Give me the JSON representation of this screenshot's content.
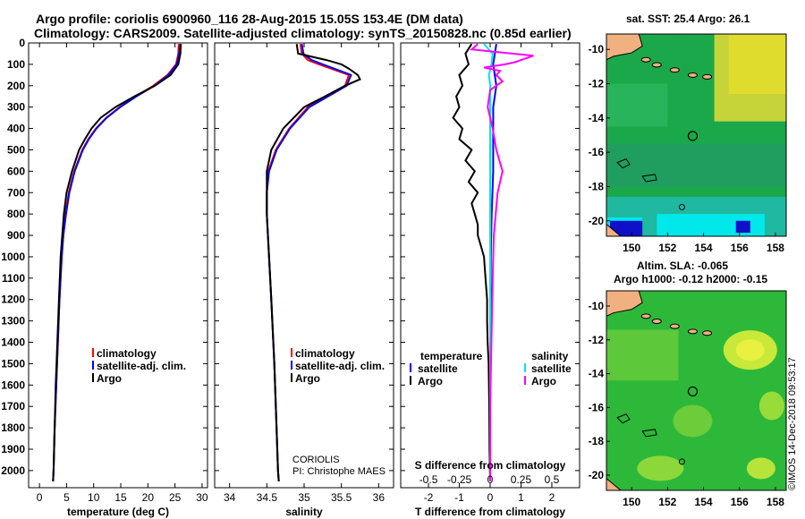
{
  "header": {
    "line1": "Argo profile: coriolis 6900960_116 28-Aug-2015 15.05S 153.4E (DM data)",
    "line2": "Climatology: CARS2009. Satellite-adjusted climatology: synTS_20150828.nc (0.85d earlier)"
  },
  "maps": {
    "sst_title": "sat. SST: 25.4 Argo: 26.1",
    "sla_title1": "Altim. SLA: -0.065",
    "sla_title2": "Argo h1000: -0.12 h2000: -0.15",
    "lat_ticks": [
      -10,
      -12,
      -14,
      -16,
      -18,
      -20
    ],
    "lon_ticks": [
      150,
      152,
      154,
      156,
      158
    ],
    "argo_position": {
      "lon": 153.4,
      "lat": -15.05
    }
  },
  "stamp": "©IMOS 14-Dec-2018 09:53:17",
  "credit": {
    "line1": "CORIOLIS",
    "line2": "PI: Christophe MAES"
  },
  "colors": {
    "climatology": "#ff0000",
    "satellite": "#0000ff",
    "argo": "#000000",
    "sat_salinity": "#00e5e5",
    "argo_salinity": "#ff00ff"
  },
  "chart_data": [
    {
      "type": "line",
      "title": "",
      "xlabel": "temperature (deg C)",
      "ylabel": "",
      "xlim": [
        -2,
        31
      ],
      "ylim": [
        2080,
        0
      ],
      "xticks": [
        0,
        5,
        10,
        15,
        20,
        25,
        30
      ],
      "yticks": [
        0,
        100,
        200,
        300,
        400,
        500,
        600,
        700,
        800,
        900,
        1000,
        1100,
        1200,
        1300,
        1400,
        1500,
        1600,
        1700,
        1800,
        1900,
        2000
      ],
      "legend": [
        "climatology",
        "satellite-adj. clim.",
        "Argo"
      ],
      "series": [
        {
          "name": "climatology",
          "depth": [
            5,
            50,
            100,
            150,
            200,
            250,
            300,
            350,
            400,
            450,
            500,
            600,
            700,
            800,
            900,
            1000,
            1200,
            1400,
            1600,
            1800,
            2000,
            2050
          ],
          "values": [
            25.7,
            25.6,
            25.2,
            23.6,
            21.0,
            17.8,
            14.8,
            12.3,
            10.4,
            9.0,
            7.9,
            6.4,
            5.4,
            4.8,
            4.4,
            4.1,
            3.7,
            3.4,
            3.1,
            2.8,
            2.6,
            2.5
          ]
        },
        {
          "name": "satellite-adj. clim.",
          "depth": [
            5,
            50,
            100,
            150,
            200,
            250,
            300,
            350,
            400,
            450,
            500,
            600,
            700,
            800,
            900,
            1000,
            1200,
            1400,
            1600,
            1800,
            2000,
            2050
          ],
          "values": [
            25.9,
            25.8,
            25.3,
            23.8,
            21.2,
            17.9,
            14.9,
            12.4,
            10.5,
            9.1,
            8.0,
            6.5,
            5.5,
            4.9,
            4.4,
            4.1,
            3.7,
            3.4,
            3.1,
            2.8,
            2.6,
            2.5
          ]
        },
        {
          "name": "Argo",
          "depth": [
            5,
            50,
            100,
            150,
            200,
            250,
            300,
            350,
            400,
            450,
            500,
            600,
            700,
            800,
            900,
            1000,
            1200,
            1400,
            1600,
            1800,
            2000,
            2050
          ],
          "values": [
            26.1,
            26.0,
            25.6,
            24.2,
            21.3,
            17.5,
            14.0,
            11.3,
            9.6,
            8.4,
            7.3,
            6.0,
            5.0,
            4.5,
            4.2,
            3.9,
            3.6,
            3.3,
            3.0,
            2.8,
            2.6,
            2.5
          ]
        }
      ]
    },
    {
      "type": "line",
      "xlabel": "salinity",
      "xlim": [
        33.8,
        36.2
      ],
      "ylim": [
        2080,
        0
      ],
      "xticks": [
        34,
        34.5,
        35,
        35.5,
        36
      ],
      "legend": [
        "climatology",
        "satellite-adj. clim.",
        "Argo"
      ],
      "series": [
        {
          "name": "climatology",
          "depth": [
            5,
            50,
            80,
            100,
            150,
            200,
            250,
            300,
            400,
            500,
            600,
            700,
            800,
            1000,
            1200,
            1500,
            1800,
            2000,
            2050
          ],
          "values": [
            34.95,
            34.97,
            35.05,
            35.2,
            35.6,
            35.55,
            35.3,
            35.05,
            34.8,
            34.62,
            34.52,
            34.5,
            34.5,
            34.53,
            34.56,
            34.6,
            34.63,
            34.65,
            34.66
          ]
        },
        {
          "name": "satellite-adj. clim.",
          "depth": [
            5,
            50,
            80,
            100,
            150,
            200,
            250,
            300,
            400,
            500,
            600,
            700,
            800,
            1000,
            1200,
            1500,
            1800,
            2000,
            2050
          ],
          "values": [
            34.97,
            34.99,
            35.1,
            35.25,
            35.63,
            35.57,
            35.32,
            35.07,
            34.81,
            34.63,
            34.53,
            34.5,
            34.5,
            34.53,
            34.56,
            34.6,
            34.63,
            34.65,
            34.66
          ]
        },
        {
          "name": "Argo",
          "depth": [
            5,
            50,
            80,
            100,
            120,
            150,
            170,
            200,
            250,
            300,
            400,
            500,
            600,
            700,
            800,
            1000,
            1200,
            1500,
            1800,
            2000,
            2050
          ],
          "values": [
            34.9,
            34.92,
            35.3,
            35.5,
            35.6,
            35.72,
            35.75,
            35.55,
            35.28,
            35.0,
            34.72,
            34.56,
            34.5,
            34.5,
            34.5,
            34.53,
            34.56,
            34.6,
            34.63,
            34.65,
            34.66
          ]
        }
      ]
    },
    {
      "type": "line",
      "xlabel": "T difference from climatology",
      "top_xlabel": "S difference from climatology",
      "xlim": [
        -2.9,
        2.9
      ],
      "ylim": [
        2080,
        0
      ],
      "xticks": [
        -2,
        -1,
        0,
        1,
        2
      ],
      "top_ticks": [
        -0.5,
        -0.25,
        0,
        0.25,
        0.5
      ],
      "legend_left_title": "temperature",
      "legend_right_title": "salinity",
      "legend": [
        "satellite",
        "Argo"
      ],
      "series": [
        {
          "name": "temperature satellite",
          "depth": [
            5,
            100,
            200,
            300,
            400,
            600,
            800,
            1000,
            1500,
            2050
          ],
          "values": [
            0.2,
            0.1,
            0.2,
            0.1,
            0.1,
            0.1,
            0.05,
            0.02,
            0.0,
            0.0
          ]
        },
        {
          "name": "temperature Argo",
          "depth": [
            5,
            50,
            100,
            150,
            200,
            250,
            300,
            350,
            400,
            450,
            500,
            550,
            600,
            650,
            700,
            750,
            800,
            850,
            900,
            950,
            1000,
            1100,
            1200,
            1300,
            1400,
            1500,
            1700,
            1900,
            2050
          ],
          "values": [
            -0.6,
            -0.8,
            -0.7,
            -1.0,
            -0.9,
            -1.1,
            -1.0,
            -1.2,
            -0.9,
            -1.0,
            -0.6,
            -0.8,
            -0.5,
            -0.7,
            -0.4,
            -0.6,
            -0.5,
            -0.4,
            -0.4,
            -0.3,
            -0.2,
            -0.15,
            -0.1,
            -0.1,
            -0.08,
            -0.05,
            -0.03,
            -0.02,
            0.0
          ]
        },
        {
          "name": "salinity satellite",
          "depth": [
            5,
            50,
            100,
            150,
            200,
            300,
            400,
            600,
            800,
            1000,
            1500,
            2050
          ],
          "values": [
            -0.05,
            0.02,
            0.01,
            -0.01,
            0.0,
            0.0,
            0.0,
            0.0,
            0.0,
            0.0,
            0.0,
            0.0
          ]
        },
        {
          "name": "salinity Argo",
          "depth": [
            5,
            30,
            60,
            80,
            90,
            100,
            115,
            130,
            150,
            180,
            220,
            300,
            400,
            500,
            600,
            700,
            900,
            1100,
            1400,
            1700,
            2050
          ],
          "values": [
            -0.1,
            -0.15,
            0.35,
            0.25,
            0.2,
            0.12,
            -0.05,
            0.08,
            0.05,
            0.1,
            0.0,
            -0.02,
            0.02,
            0.05,
            0.1,
            0.06,
            0.03,
            0.02,
            0.01,
            0.0,
            0.0
          ]
        }
      ]
    }
  ]
}
